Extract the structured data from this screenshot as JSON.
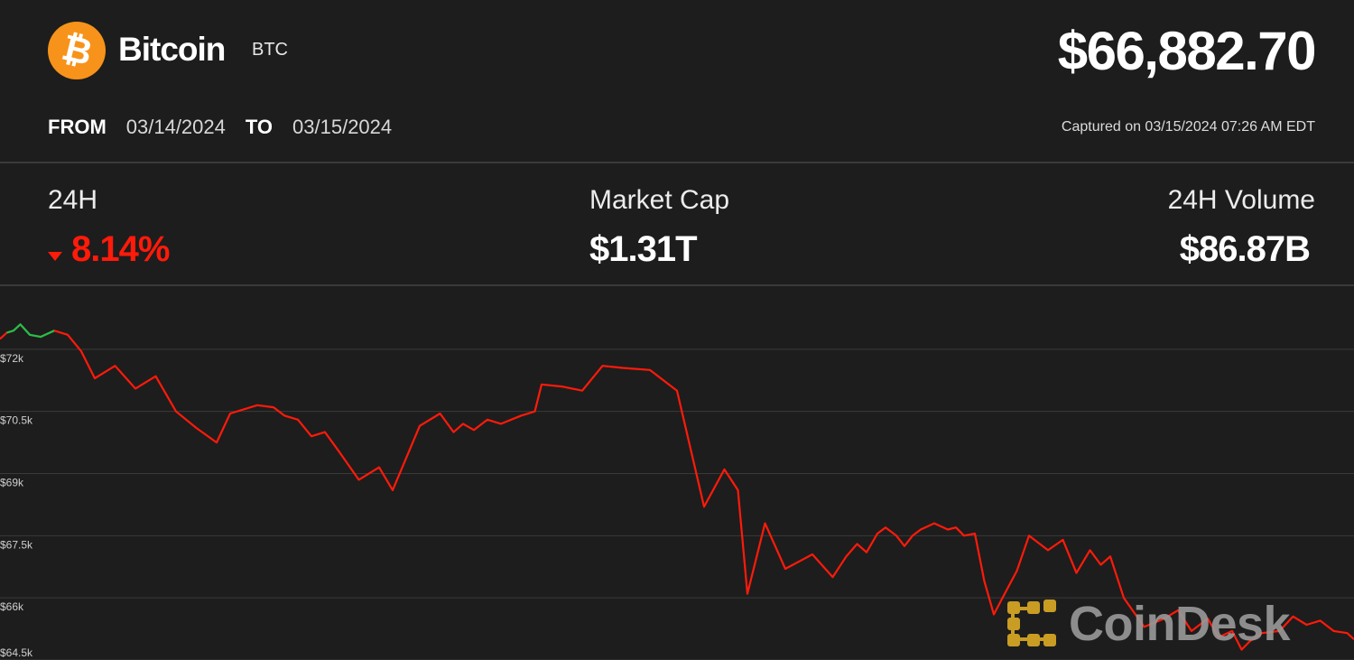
{
  "asset": {
    "logo_symbol": "₿",
    "name": "Bitcoin",
    "ticker": "BTC",
    "price": "$66,882.70",
    "brand_color": "#f7931a"
  },
  "range": {
    "from_label": "FROM",
    "from_date": "03/14/2024",
    "to_label": "TO",
    "to_date": "03/15/2024"
  },
  "captured": "Captured on 03/15/2024 07:26 AM EDT",
  "stats": {
    "change_label": "24H",
    "change_value": "8.14%",
    "change_direction": "down",
    "market_cap_label": "Market Cap",
    "market_cap_value": "$1.31T",
    "volume_label": "24H Volume",
    "volume_value": "$86.87B"
  },
  "colors": {
    "background": "#1d1d1d",
    "down": "#ff1a0a",
    "up": "#1ec24a",
    "gridline": "#3a3a3a"
  },
  "watermark": {
    "text": "CoinDesk",
    "icon": "coindesk-logo-icon",
    "color": "#e8b325"
  },
  "chart_data": {
    "type": "line",
    "title": "",
    "xlabel": "",
    "ylabel": "",
    "x_range": [
      "03/14/2024",
      "03/15/2024"
    ],
    "ylim": [
      64500,
      73500
    ],
    "y_ticks": [
      72000,
      70500,
      69000,
      67500,
      66000,
      64500
    ],
    "y_tick_labels": [
      "$72k",
      "$70.5k",
      "$69k",
      "$67.5k",
      "$66k",
      "$64.5k"
    ],
    "grid": true,
    "series": [
      {
        "up_segment_points": [
          1,
          6
        ],
        "x": [
          0,
          0.5,
          1,
          1.5,
          2.2,
          3,
          4,
          5,
          6,
          7,
          8.5,
          10,
          11.5,
          13,
          14.5,
          16,
          17,
          19,
          20.2,
          21,
          22,
          23,
          24,
          25,
          26.5,
          28,
          29,
          31,
          32.5,
          33.5,
          34.2,
          35,
          36,
          37,
          38.5,
          39.5,
          40,
          41.5,
          43,
          44.5,
          46,
          48,
          50,
          52,
          53.5,
          54.5,
          55.2,
          56.5,
          58,
          60,
          61.5,
          62.5,
          63.3,
          64,
          64.8,
          65.4,
          66.2,
          66.8,
          67.4,
          68,
          69,
          70,
          70.6,
          71.2,
          72,
          72.7,
          73.4,
          74.2,
          75.1,
          76,
          77.4,
          78.5,
          79.5,
          80.5,
          81.3,
          82,
          83,
          84.5,
          86,
          87,
          88,
          89.2,
          90,
          91,
          91.7,
          92.3,
          93.2,
          94.5,
          95.5,
          96.5,
          97.5,
          98.5,
          99.5,
          100
        ],
        "y": [
          72250,
          72400,
          72450,
          72600,
          72350,
          72300,
          72450,
          72350,
          71950,
          71300,
          71600,
          71050,
          71350,
          70500,
          70100,
          69750,
          70450,
          70650,
          70600,
          70400,
          70300,
          69900,
          70000,
          69550,
          68850,
          69150,
          68600,
          70150,
          70450,
          70000,
          70200,
          70050,
          70300,
          70200,
          70400,
          70500,
          71150,
          71100,
          71000,
          71600,
          71550,
          71500,
          71000,
          68200,
          69100,
          68600,
          66100,
          67800,
          66700,
          67050,
          66500,
          67000,
          67300,
          67100,
          67550,
          67700,
          67500,
          67250,
          67500,
          67650,
          67800,
          67650,
          67700,
          67500,
          67550,
          66400,
          65600,
          66100,
          66650,
          67500,
          67150,
          67400,
          66600,
          67150,
          66800,
          67000,
          66000,
          65300,
          65500,
          65700,
          65200,
          65500,
          65050,
          65200,
          64750,
          64950,
          65150,
          65200,
          65550,
          65350,
          65450,
          65200,
          65150,
          65000
        ]
      }
    ]
  }
}
